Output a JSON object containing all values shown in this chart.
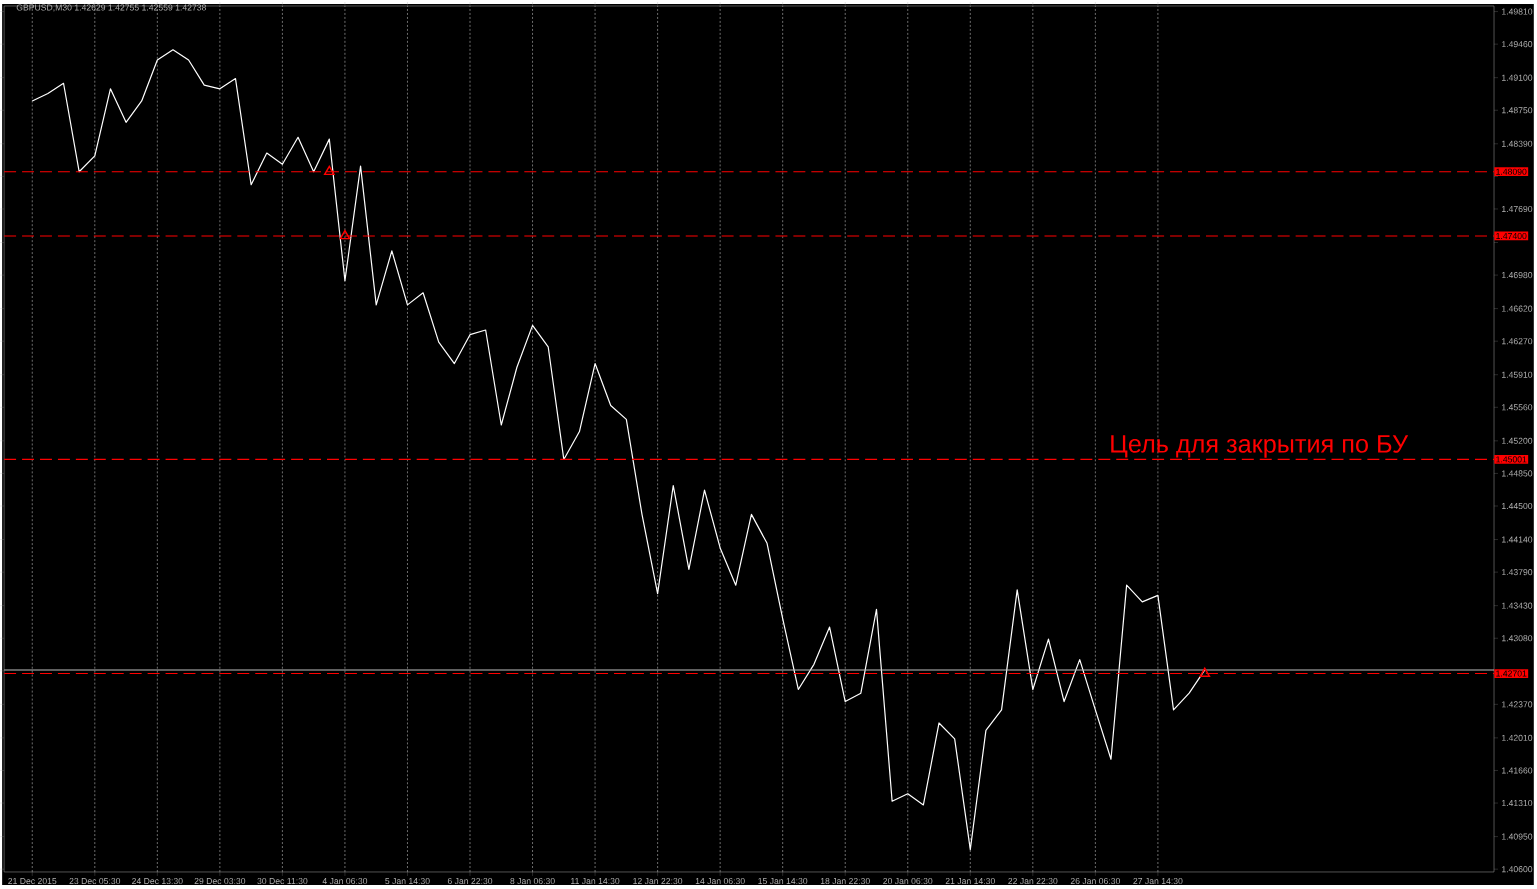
{
  "chart_data": {
    "type": "line",
    "title": "GBPUSD,M30  1.42629 1.42755 1.42559 1.42738",
    "annotations": [
      {
        "text": "Цель для закрытия по БУ",
        "y": 1.45001
      }
    ],
    "categories": [
      "21 Dec 2015",
      null,
      null,
      null,
      "23 Dec 05:30",
      null,
      null,
      null,
      "24 Dec 13:30",
      null,
      null,
      null,
      "29 Dec 03:30",
      null,
      null,
      null,
      "30 Dec 11:30",
      null,
      null,
      null,
      "4 Jan 06:30",
      null,
      null,
      null,
      "5 Jan 14:30",
      null,
      null,
      null,
      "6 Jan 22:30",
      null,
      null,
      null,
      "8 Jan 06:30",
      null,
      null,
      null,
      "11 Jan 14:30",
      null,
      null,
      null,
      "12 Jan 22:30",
      null,
      null,
      null,
      "14 Jan 06:30",
      null,
      null,
      null,
      "15 Jan 14:30",
      null,
      null,
      null,
      "18 Jan 22:30",
      null,
      null,
      null,
      "20 Jan 06:30",
      null,
      null,
      null,
      "21 Jan 14:30",
      null,
      null,
      null,
      "22 Jan 22:30",
      null,
      null,
      null,
      "26 Jan 06:30",
      null,
      null,
      null,
      "27 Jan 14:30",
      null,
      null,
      null,
      null,
      null,
      null,
      null,
      null,
      null,
      null,
      null,
      null,
      null,
      null,
      null,
      null,
      null,
      null,
      null,
      null,
      null
    ],
    "series": [
      {
        "color": "#ffffff",
        "values": [
          1.4885,
          1.4893,
          1.4904,
          1.4809,
          1.4826,
          1.4898,
          1.4862,
          1.4885,
          1.4929,
          1.494,
          1.4929,
          1.4902,
          1.4898,
          1.4909,
          1.4795,
          1.4829,
          1.4817,
          1.4846,
          1.4809,
          1.4844,
          1.4692,
          1.4815,
          1.4666,
          1.4724,
          1.4666,
          1.4679,
          1.4626,
          1.4603,
          1.4634,
          1.4639,
          1.4537,
          1.4599,
          1.4644,
          1.4621,
          1.45,
          1.453,
          1.4603,
          1.4558,
          1.4543,
          1.4441,
          1.4356,
          1.4472,
          1.4382,
          1.4467,
          1.4405,
          1.4365,
          1.4441,
          1.441,
          1.4329,
          1.4253,
          1.428,
          1.432,
          1.424,
          1.4249,
          1.4339,
          1.4133,
          1.4141,
          1.4129,
          1.4217,
          1.42,
          1.4081,
          1.4209,
          1.4231,
          1.436,
          1.4253,
          1.4307,
          1.424,
          1.4285,
          1.4231,
          1.4178,
          1.4365,
          1.4347,
          1.4354,
          1.4231,
          1.4249,
          1.4274,
          null,
          null,
          null,
          null,
          null,
          null,
          null,
          null,
          null,
          null,
          null,
          null,
          null,
          null,
          null,
          null,
          null,
          null
        ]
      },
      {
        "type": "scatter",
        "color": "#ff0000",
        "marker": "triangle",
        "values": [
          null,
          null,
          null,
          null,
          null,
          null,
          null,
          null,
          null,
          null,
          null,
          null,
          null,
          null,
          null,
          null,
          null,
          null,
          null,
          1.4809,
          1.474,
          null,
          null,
          null,
          null,
          null,
          null,
          null,
          null,
          null,
          null,
          null,
          null,
          null,
          null,
          null,
          null,
          null,
          null,
          null,
          null,
          null,
          null,
          null,
          null,
          null,
          null,
          null,
          null,
          null,
          null,
          null,
          null,
          null,
          null,
          null,
          null,
          null,
          null,
          null,
          null,
          null,
          null,
          null,
          null,
          null,
          null,
          null,
          null,
          null,
          null,
          null,
          null,
          null,
          null,
          1.427,
          null,
          null,
          null,
          null,
          null,
          null,
          null,
          null,
          null,
          null,
          null,
          null,
          null,
          null,
          null,
          null,
          null,
          null
        ]
      }
    ],
    "ylim": [
      1.4057,
      1.4987
    ],
    "yticks": [
      {
        "value": 1.406,
        "label": "1.40600"
      },
      {
        "value": 1.4095,
        "label": "1.40950"
      },
      {
        "value": 1.4131,
        "label": "1.41310"
      },
      {
        "value": 1.4166,
        "label": "1.41660"
      },
      {
        "value": 1.4201,
        "label": "1.42010"
      },
      {
        "value": 1.4237,
        "label": "1.42370"
      },
      {
        "value": 1.4273,
        "label": null
      },
      {
        "value": 1.4308,
        "label": "1.43080"
      },
      {
        "value": 1.4343,
        "label": "1.43430"
      },
      {
        "value": 1.4379,
        "label": "1.43790"
      },
      {
        "value": 1.4414,
        "label": "1.44140"
      },
      {
        "value": 1.445,
        "label": "1.44500"
      },
      {
        "value": 1.4485,
        "label": "1.44850"
      },
      {
        "value": 1.452,
        "label": "1.45200"
      },
      {
        "value": 1.4556,
        "label": "1.45560"
      },
      {
        "value": 1.4591,
        "label": "1.45910"
      },
      {
        "value": 1.4627,
        "label": "1.46270"
      },
      {
        "value": 1.4662,
        "label": "1.46620"
      },
      {
        "value": 1.4698,
        "label": "1.46980"
      },
      {
        "value": 1.4733,
        "label": null
      },
      {
        "value": 1.4769,
        "label": "1.47690"
      },
      {
        "value": 1.4804,
        "label": null
      },
      {
        "value": 1.4839,
        "label": "1.48390"
      },
      {
        "value": 1.4875,
        "label": "1.48750"
      },
      {
        "value": 1.491,
        "label": "1.49100"
      },
      {
        "value": 1.4946,
        "label": "1.49460"
      },
      {
        "value": 1.4981,
        "label": "1.49810"
      }
    ],
    "grid": "x",
    "ref_lines": [
      {
        "axis": "y",
        "value": 1.4809,
        "label": "1.48090",
        "color": "#ff0000",
        "line_style": "dashed"
      },
      {
        "axis": "y",
        "value": 1.474,
        "label": "1.47400",
        "color": "#ff0000",
        "line_style": "dashed"
      },
      {
        "axis": "y",
        "value": 1.45001,
        "label": "1.45001",
        "color": "#ff0000",
        "line_style": "dashed"
      },
      {
        "axis": "y",
        "value": 1.42738,
        "color": "#c0c0c0",
        "line_style": "solid"
      },
      {
        "axis": "y",
        "value": 1.42701,
        "label": "1.42701",
        "color": "#ff0000",
        "line_style": "dashed"
      }
    ]
  }
}
